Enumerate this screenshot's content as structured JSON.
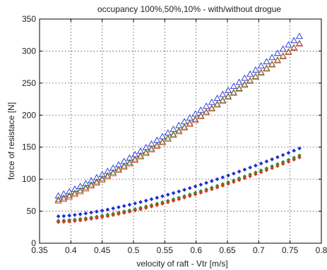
{
  "chart_data": {
    "type": "scatter",
    "title": "occupancy 100%,50%,10% -  with/without drogue",
    "xlabel": "velocity of raft - Vtr [m/s]",
    "ylabel": "force of resistace  [N]",
    "xlim": [
      0.35,
      0.8
    ],
    "ylim": [
      0,
      350
    ],
    "grid": true,
    "xticks": [
      "0.35",
      "0.4",
      "0.45",
      "0.5",
      "0.55",
      "0.6",
      "0.65",
      "0.7",
      "0.75",
      "0.8"
    ],
    "yticks": [
      "0",
      "50",
      "100",
      "150",
      "200",
      "250",
      "300",
      "350"
    ],
    "x_start": 0.38,
    "x_end": 0.765,
    "points_per_series": 45,
    "series": [
      {
        "marker": "triangle",
        "color": "#1c2fd6",
        "y_start": 74,
        "y_end": 323,
        "curve": 1.18
      },
      {
        "marker": "triangle",
        "color": "#2e8f2e",
        "y_start": 68,
        "y_end": 312,
        "curve": 1.18
      },
      {
        "marker": "triangle",
        "color": "#e0403c",
        "y_start": 66,
        "y_end": 311,
        "curve": 1.18
      },
      {
        "marker": "dot",
        "color": "#1c2fd6",
        "y_start": 42,
        "y_end": 148,
        "curve": 1.45
      },
      {
        "marker": "dot",
        "color": "#2e8f2e",
        "y_start": 35,
        "y_end": 137,
        "curve": 1.5
      },
      {
        "marker": "dot",
        "color": "#d03a22",
        "y_start": 33,
        "y_end": 134,
        "curve": 1.5
      }
    ]
  }
}
